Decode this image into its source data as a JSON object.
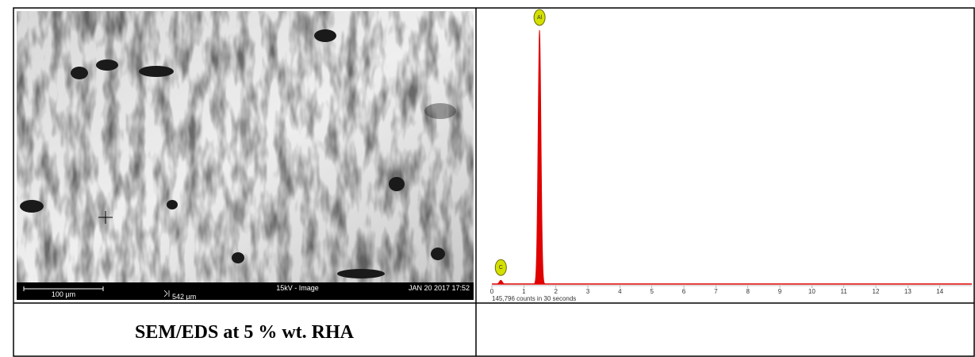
{
  "image_panel": {
    "scale_bar": "100 µm",
    "field_width": "542 µm",
    "mode": "15kV - Image",
    "timestamp": "JAN 20 2017 17:52"
  },
  "caption": "SEM/EDS at 5 % wt. RHA",
  "chart_data": {
    "type": "spectrum",
    "peaks": [
      {
        "name": "C",
        "energy": 0.28,
        "intensity": 1.5
      },
      {
        "name": "Al",
        "energy": 1.49,
        "intensity": 100
      }
    ],
    "xlim": [
      0,
      15
    ],
    "xticks": [
      0,
      1,
      2,
      3,
      4,
      5,
      6,
      7,
      8,
      9,
      10,
      11,
      12,
      13,
      14
    ],
    "counts_label": "145,796 counts in 30 seconds",
    "color": "#e00000"
  }
}
